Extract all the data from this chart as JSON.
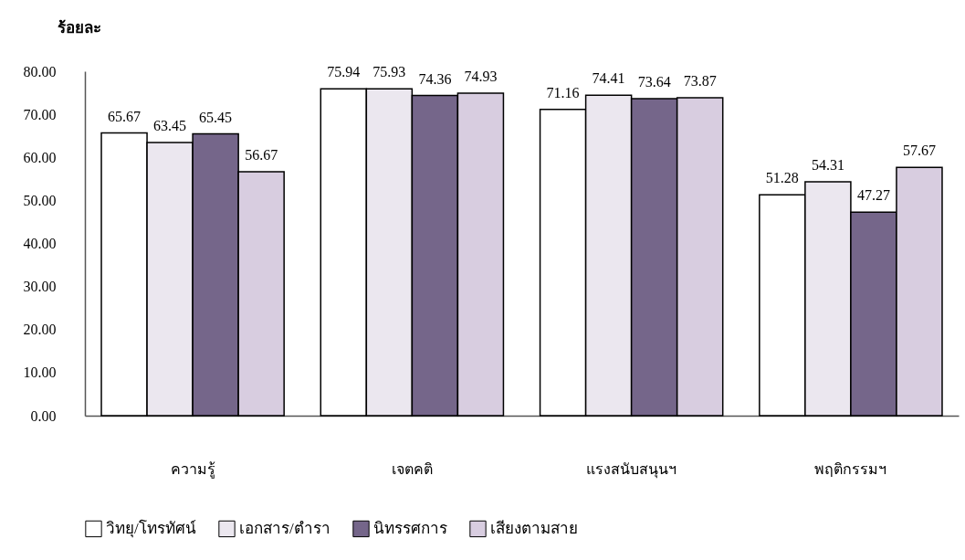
{
  "chart_data": {
    "type": "bar",
    "ylabel": "ร้อยละ",
    "categories": [
      "ความรู้",
      "เจตคติ",
      "แรงสนับสนุนฯ",
      "พฤติกรรมฯ"
    ],
    "series": [
      {
        "name": "วิทยุ/โทรทัศน์",
        "color": "#ffffff",
        "values": [
          65.67,
          75.94,
          71.16,
          51.28
        ]
      },
      {
        "name": "เอกสาร/ตำรา",
        "color": "#ebe7ef",
        "values": [
          63.45,
          75.93,
          74.41,
          54.31
        ]
      },
      {
        "name": "นิทรรศการ",
        "color": "#75668a",
        "values": [
          65.45,
          74.36,
          73.64,
          47.27
        ]
      },
      {
        "name": "เสียงตามสาย",
        "color": "#d8cde0",
        "values": [
          56.67,
          74.93,
          73.87,
          57.67
        ]
      }
    ],
    "ylim": [
      0,
      80
    ],
    "yticks": [
      {
        "value": 0,
        "label": "0.00"
      },
      {
        "value": 10,
        "label": "10.00"
      },
      {
        "value": 20,
        "label": "20.00"
      },
      {
        "value": 30,
        "label": "30.00"
      },
      {
        "value": 40,
        "label": "40.00"
      },
      {
        "value": 50,
        "label": "50.00"
      },
      {
        "value": 60,
        "label": "60.00"
      },
      {
        "value": 70,
        "label": "70.00"
      },
      {
        "value": 80,
        "label": "80.00"
      }
    ],
    "data_labels": true,
    "legend": "bottom",
    "grid": false
  }
}
